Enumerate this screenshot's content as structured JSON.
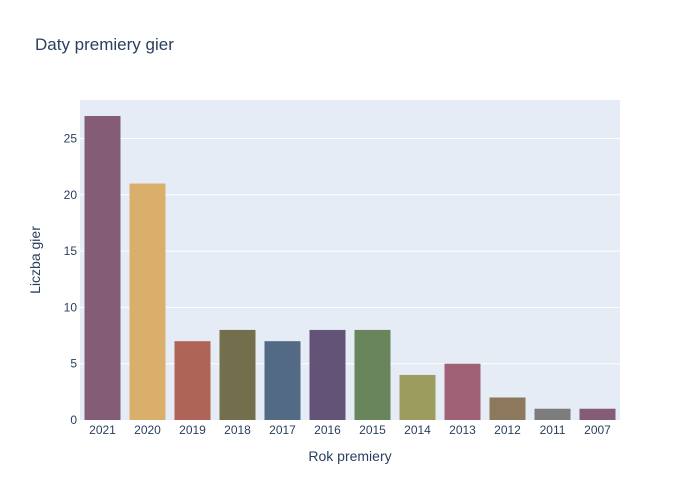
{
  "chart_data": {
    "type": "bar",
    "title": "Daty premiery gier",
    "xlabel": "Rok premiery",
    "ylabel": "Liczba gier",
    "categories": [
      "2021",
      "2020",
      "2019",
      "2018",
      "2017",
      "2016",
      "2015",
      "2014",
      "2013",
      "2012",
      "2011",
      "2007"
    ],
    "values": [
      27,
      21,
      7,
      8,
      7,
      8,
      8,
      4,
      5,
      2,
      1,
      1
    ],
    "colors": [
      "#855c75",
      "#d9af6b",
      "#af6458",
      "#736f4c",
      "#526a83",
      "#625377",
      "#68855c",
      "#9c9c5e",
      "#a06177",
      "#8c785d",
      "#7c7c7c",
      "#855c75"
    ],
    "yticks": [
      0,
      5,
      10,
      15,
      20,
      25
    ],
    "ylim": [
      0,
      28.42
    ],
    "grid": true,
    "legend": "none",
    "plot_bg": "#e5ecf6",
    "grid_color": "#ffffff",
    "text_color": "#2a3f5f"
  }
}
